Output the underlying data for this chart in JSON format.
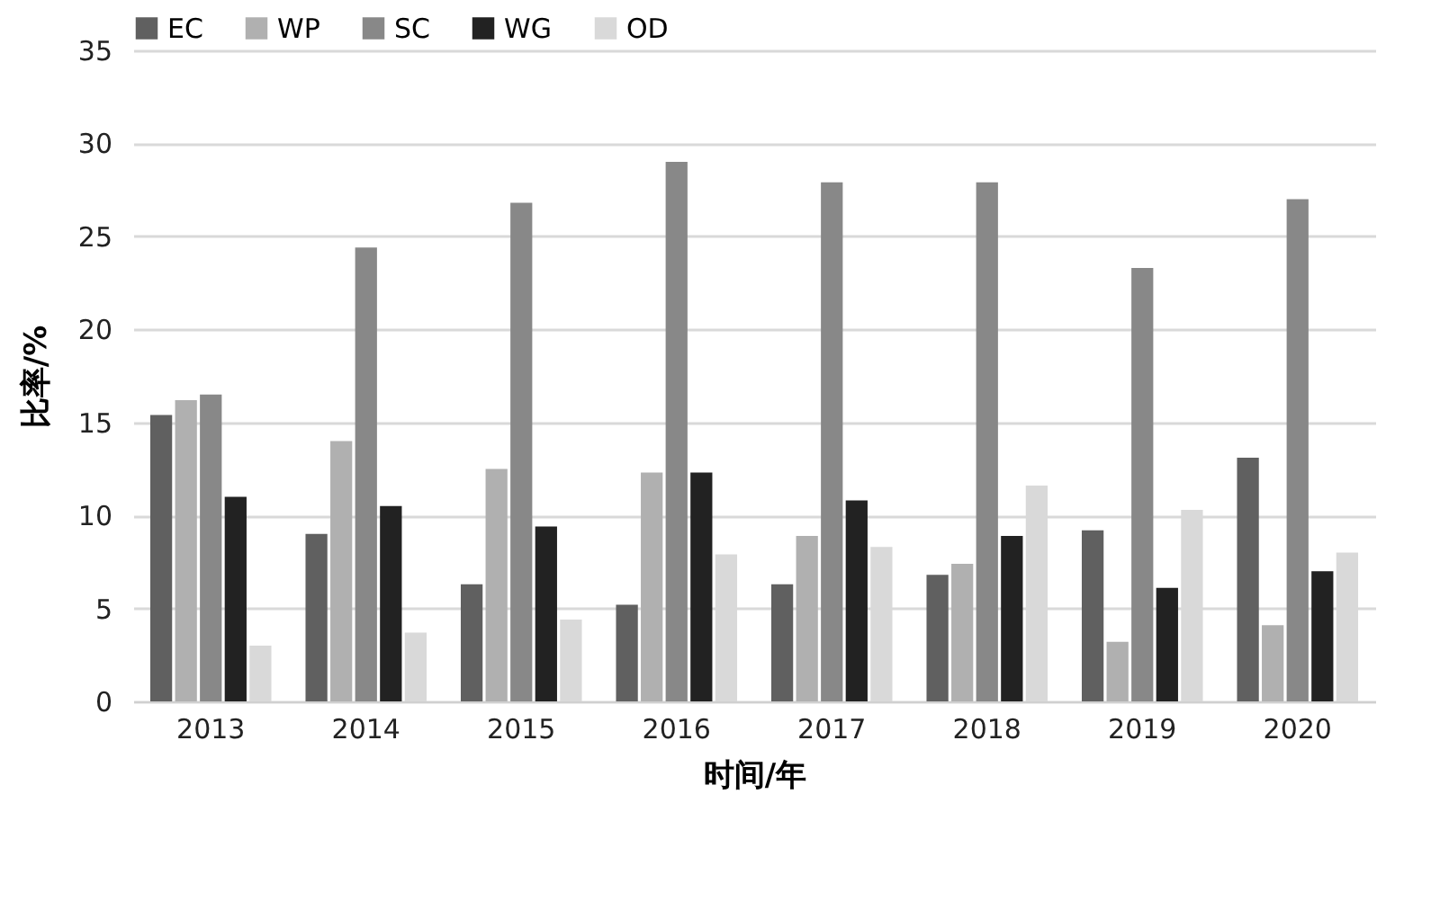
{
  "chart_data": {
    "type": "bar",
    "xlabel": "时间/年",
    "ylabel": "比率/%",
    "categories": [
      "2013",
      "2014",
      "2015",
      "2016",
      "2017",
      "2018",
      "2019",
      "2020"
    ],
    "series": [
      {
        "name": "EC",
        "color": "#606060",
        "values": [
          15.4,
          9.0,
          6.3,
          5.2,
          6.3,
          6.8,
          9.2,
          13.1
        ]
      },
      {
        "name": "WP",
        "color": "#b0b0b0",
        "values": [
          16.2,
          14.0,
          12.5,
          12.3,
          8.9,
          7.4,
          3.2,
          4.1
        ]
      },
      {
        "name": "SC",
        "color": "#888888",
        "values": [
          16.5,
          24.4,
          26.8,
          29.0,
          27.9,
          27.9,
          23.3,
          27.0
        ]
      },
      {
        "name": "WG",
        "color": "#222222",
        "values": [
          11.0,
          10.5,
          9.4,
          12.3,
          10.8,
          8.9,
          6.1,
          7.0
        ]
      },
      {
        "name": "OD",
        "color": "#d9d9d9",
        "values": [
          3.0,
          3.7,
          4.4,
          7.9,
          8.3,
          11.6,
          10.3,
          8.0
        ]
      }
    ],
    "ylim": [
      0,
      35
    ],
    "yticks": [
      0,
      5,
      10,
      15,
      20,
      25,
      30,
      35
    ],
    "grid": "y",
    "legend": "top"
  }
}
